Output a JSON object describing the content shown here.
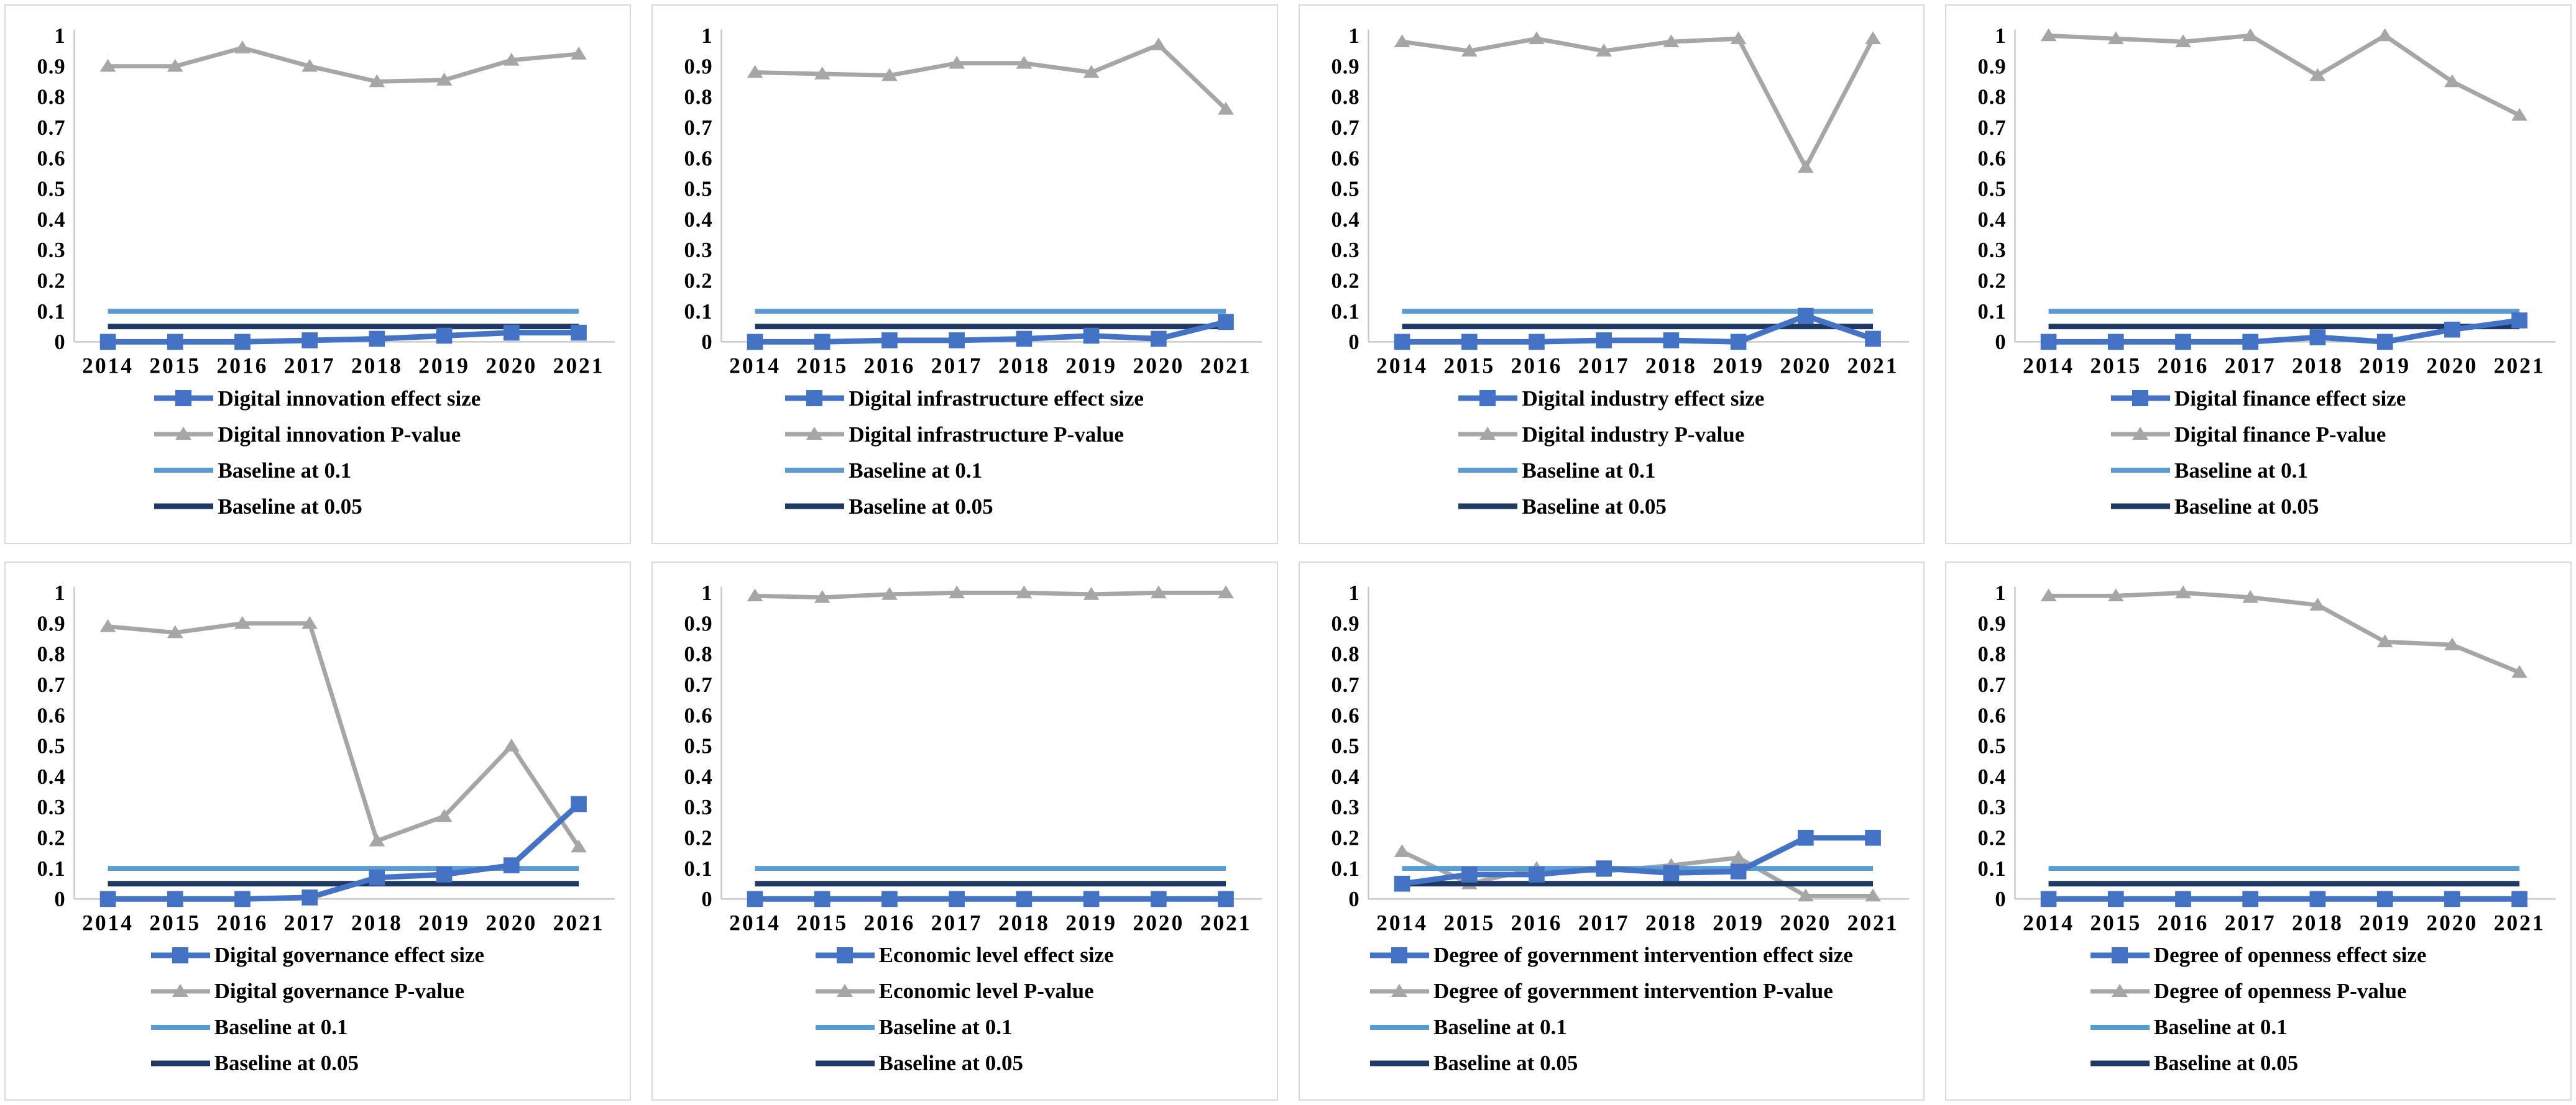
{
  "colors": {
    "effect": "#4472C4",
    "pvalue": "#A6A6A6",
    "baseline01": "#5B9BD5",
    "baseline005": "#1F3864",
    "axis_line": "#c9c9c9",
    "panel_border": "#d9d9d9",
    "text": "#000000"
  },
  "chart_data": [
    {
      "type": "line",
      "name": "Digital innovation",
      "x": [
        "2014",
        "2015",
        "2016",
        "2017",
        "2018",
        "2019",
        "2020",
        "2021"
      ],
      "ylim": [
        0,
        1
      ],
      "y_ticks": [
        "0",
        "0.1",
        "0.2",
        "0.3",
        "0.4",
        "0.5",
        "0.6",
        "0.7",
        "0.8",
        "0.9",
        "1"
      ],
      "grid": false,
      "legend_position": "bottom",
      "series": [
        {
          "name": "Digital innovation effect size",
          "marker": "square",
          "color_key": "effect",
          "values": [
            0,
            0,
            0,
            0.005,
            0.01,
            0.02,
            0.03,
            0.03
          ]
        },
        {
          "name": "Digital innovation P-value",
          "marker": "triangle",
          "color_key": "pvalue",
          "values": [
            0.9,
            0.9,
            0.96,
            0.9,
            0.85,
            0.855,
            0.92,
            0.94
          ]
        },
        {
          "name": "Baseline at 0.1",
          "marker": "none",
          "color_key": "baseline01",
          "values": [
            0.1,
            0.1,
            0.1,
            0.1,
            0.1,
            0.1,
            0.1,
            0.1
          ]
        },
        {
          "name": "Baseline at 0.05",
          "marker": "none",
          "color_key": "baseline005",
          "values": [
            0.05,
            0.05,
            0.05,
            0.05,
            0.05,
            0.05,
            0.05,
            0.05
          ]
        }
      ]
    },
    {
      "type": "line",
      "name": "Digital infrastructure",
      "x": [
        "2014",
        "2015",
        "2016",
        "2017",
        "2018",
        "2019",
        "2020",
        "2021"
      ],
      "ylim": [
        0,
        1
      ],
      "y_ticks": [
        "0",
        "0.1",
        "0.2",
        "0.3",
        "0.4",
        "0.5",
        "0.6",
        "0.7",
        "0.8",
        "0.9",
        "1"
      ],
      "grid": false,
      "legend_position": "bottom",
      "series": [
        {
          "name": "Digital infrastructure effect size",
          "marker": "square",
          "color_key": "effect",
          "values": [
            0,
            0,
            0.005,
            0.005,
            0.01,
            0.02,
            0.01,
            0.065
          ]
        },
        {
          "name": "Digital infrastructure P-value",
          "marker": "triangle",
          "color_key": "pvalue",
          "values": [
            0.88,
            0.875,
            0.87,
            0.91,
            0.91,
            0.88,
            0.97,
            0.76
          ]
        },
        {
          "name": "Baseline at 0.1",
          "marker": "none",
          "color_key": "baseline01",
          "values": [
            0.1,
            0.1,
            0.1,
            0.1,
            0.1,
            0.1,
            0.1,
            0.1
          ]
        },
        {
          "name": "Baseline at 0.05",
          "marker": "none",
          "color_key": "baseline005",
          "values": [
            0.05,
            0.05,
            0.05,
            0.05,
            0.05,
            0.05,
            0.05,
            0.05
          ]
        }
      ]
    },
    {
      "type": "line",
      "name": "Digital industry",
      "x": [
        "2014",
        "2015",
        "2016",
        "2017",
        "2018",
        "2019",
        "2020",
        "2021"
      ],
      "ylim": [
        0,
        1
      ],
      "y_ticks": [
        "0",
        "0.1",
        "0.2",
        "0.3",
        "0.4",
        "0.5",
        "0.6",
        "0.7",
        "0.8",
        "0.9",
        "1"
      ],
      "grid": false,
      "legend_position": "bottom",
      "series": [
        {
          "name": "Digital industry effect size",
          "marker": "square",
          "color_key": "effect",
          "values": [
            0,
            0,
            0,
            0.005,
            0.005,
            0,
            0.085,
            0.01
          ]
        },
        {
          "name": "Digital industry P-value",
          "marker": "triangle",
          "color_key": "pvalue",
          "values": [
            0.98,
            0.95,
            0.99,
            0.95,
            0.98,
            0.99,
            0.57,
            0.99
          ]
        },
        {
          "name": "Baseline at 0.1",
          "marker": "none",
          "color_key": "baseline01",
          "values": [
            0.1,
            0.1,
            0.1,
            0.1,
            0.1,
            0.1,
            0.1,
            0.1
          ]
        },
        {
          "name": "Baseline at 0.05",
          "marker": "none",
          "color_key": "baseline005",
          "values": [
            0.05,
            0.05,
            0.05,
            0.05,
            0.05,
            0.05,
            0.05,
            0.05
          ]
        }
      ]
    },
    {
      "type": "line",
      "name": "Digital finance",
      "x": [
        "2014",
        "2015",
        "2016",
        "2017",
        "2018",
        "2019",
        "2020",
        "2021"
      ],
      "ylim": [
        0,
        1
      ],
      "y_ticks": [
        "0",
        "0.1",
        "0.2",
        "0.3",
        "0.4",
        "0.5",
        "0.6",
        "0.7",
        "0.8",
        "0.9",
        "1"
      ],
      "grid": false,
      "legend_position": "bottom",
      "series": [
        {
          "name": "Digital finance effect size",
          "marker": "square",
          "color_key": "effect",
          "values": [
            0,
            0,
            0,
            0,
            0.015,
            0,
            0.04,
            0.07
          ]
        },
        {
          "name": "Digital finance P-value",
          "marker": "triangle",
          "color_key": "pvalue",
          "values": [
            1.0,
            0.99,
            0.98,
            1.0,
            0.87,
            1.0,
            0.85,
            0.74
          ]
        },
        {
          "name": "Baseline at 0.1",
          "marker": "none",
          "color_key": "baseline01",
          "values": [
            0.1,
            0.1,
            0.1,
            0.1,
            0.1,
            0.1,
            0.1,
            0.1
          ]
        },
        {
          "name": "Baseline at 0.05",
          "marker": "none",
          "color_key": "baseline005",
          "values": [
            0.05,
            0.05,
            0.05,
            0.05,
            0.05,
            0.05,
            0.05,
            0.05
          ]
        }
      ]
    },
    {
      "type": "line",
      "name": "Digital governance",
      "x": [
        "2014",
        "2015",
        "2016",
        "2017",
        "2018",
        "2019",
        "2020",
        "2021"
      ],
      "ylim": [
        0,
        1
      ],
      "y_ticks": [
        "0",
        "0.1",
        "0.2",
        "0.3",
        "0.4",
        "0.5",
        "0.6",
        "0.7",
        "0.8",
        "0.9",
        "1"
      ],
      "grid": false,
      "legend_position": "bottom",
      "series": [
        {
          "name": "Digital governance effect size",
          "marker": "square",
          "color_key": "effect",
          "values": [
            0,
            0,
            0,
            0.005,
            0.07,
            0.08,
            0.11,
            0.31
          ]
        },
        {
          "name": "Digital governance P-value",
          "marker": "triangle",
          "color_key": "pvalue",
          "values": [
            0.89,
            0.87,
            0.9,
            0.9,
            0.19,
            0.27,
            0.5,
            0.17
          ]
        },
        {
          "name": "Baseline at 0.1",
          "marker": "none",
          "color_key": "baseline01",
          "values": [
            0.1,
            0.1,
            0.1,
            0.1,
            0.1,
            0.1,
            0.1,
            0.1
          ]
        },
        {
          "name": "Baseline at 0.05",
          "marker": "none",
          "color_key": "baseline005",
          "values": [
            0.05,
            0.05,
            0.05,
            0.05,
            0.05,
            0.05,
            0.05,
            0.05
          ]
        }
      ]
    },
    {
      "type": "line",
      "name": "Economic level",
      "x": [
        "2014",
        "2015",
        "2016",
        "2017",
        "2018",
        "2019",
        "2020",
        "2021"
      ],
      "ylim": [
        0,
        1
      ],
      "y_ticks": [
        "0",
        "0.1",
        "0.2",
        "0.3",
        "0.4",
        "0.5",
        "0.6",
        "0.7",
        "0.8",
        "0.9",
        "1"
      ],
      "grid": false,
      "legend_position": "bottom",
      "series": [
        {
          "name": "Economic level effect size",
          "marker": "square",
          "color_key": "effect",
          "values": [
            0,
            0,
            0,
            0,
            0,
            0,
            0,
            0
          ]
        },
        {
          "name": "Economic level P-value",
          "marker": "triangle",
          "color_key": "pvalue",
          "values": [
            0.99,
            0.985,
            0.995,
            1.0,
            1.0,
            0.995,
            1.0,
            1.0
          ]
        },
        {
          "name": "Baseline at 0.1",
          "marker": "none",
          "color_key": "baseline01",
          "values": [
            0.1,
            0.1,
            0.1,
            0.1,
            0.1,
            0.1,
            0.1,
            0.1
          ]
        },
        {
          "name": "Baseline at 0.05",
          "marker": "none",
          "color_key": "baseline005",
          "values": [
            0.05,
            0.05,
            0.05,
            0.05,
            0.05,
            0.05,
            0.05,
            0.05
          ]
        }
      ]
    },
    {
      "type": "line",
      "name": "Degree of government intervention",
      "x": [
        "2014",
        "2015",
        "2016",
        "2017",
        "2018",
        "2019",
        "2020",
        "2021"
      ],
      "ylim": [
        0,
        1
      ],
      "y_ticks": [
        "0",
        "0.1",
        "0.2",
        "0.3",
        "0.4",
        "0.5",
        "0.6",
        "0.7",
        "0.8",
        "0.9",
        "1"
      ],
      "grid": false,
      "legend_position": "bottom",
      "series": [
        {
          "name": "Degree of government intervention effect size",
          "marker": "square",
          "color_key": "effect",
          "values": [
            0.05,
            0.08,
            0.08,
            0.1,
            0.085,
            0.09,
            0.2,
            0.2
          ]
        },
        {
          "name": "Degree of government intervention P-value",
          "marker": "triangle",
          "color_key": "pvalue",
          "values": [
            0.155,
            0.05,
            0.1,
            0.09,
            0.11,
            0.135,
            0.01,
            0.01
          ]
        },
        {
          "name": "Baseline at 0.1",
          "marker": "none",
          "color_key": "baseline01",
          "values": [
            0.1,
            0.1,
            0.1,
            0.1,
            0.1,
            0.1,
            0.1,
            0.1
          ]
        },
        {
          "name": "Baseline at 0.05",
          "marker": "none",
          "color_key": "baseline005",
          "values": [
            0.05,
            0.05,
            0.05,
            0.05,
            0.05,
            0.05,
            0.05,
            0.05
          ]
        }
      ]
    },
    {
      "type": "line",
      "name": "Degree of openness",
      "x": [
        "2014",
        "2015",
        "2016",
        "2017",
        "2018",
        "2019",
        "2020",
        "2021"
      ],
      "ylim": [
        0,
        1
      ],
      "y_ticks": [
        "0",
        "0.1",
        "0.2",
        "0.3",
        "0.4",
        "0.5",
        "0.6",
        "0.7",
        "0.8",
        "0.9",
        "1"
      ],
      "grid": false,
      "legend_position": "bottom",
      "series": [
        {
          "name": "Degree of openness effect size",
          "marker": "square",
          "color_key": "effect",
          "values": [
            0,
            0,
            0,
            0,
            0,
            0,
            0,
            0
          ]
        },
        {
          "name": "Degree of openness P-value",
          "marker": "triangle",
          "color_key": "pvalue",
          "values": [
            0.99,
            0.99,
            1.0,
            0.985,
            0.96,
            0.84,
            0.83,
            0.74
          ]
        },
        {
          "name": "Baseline at 0.1",
          "marker": "none",
          "color_key": "baseline01",
          "values": [
            0.1,
            0.1,
            0.1,
            0.1,
            0.1,
            0.1,
            0.1,
            0.1
          ]
        },
        {
          "name": "Baseline at 0.05",
          "marker": "none",
          "color_key": "baseline005",
          "values": [
            0.05,
            0.05,
            0.05,
            0.05,
            0.05,
            0.05,
            0.05,
            0.05
          ]
        }
      ]
    }
  ]
}
